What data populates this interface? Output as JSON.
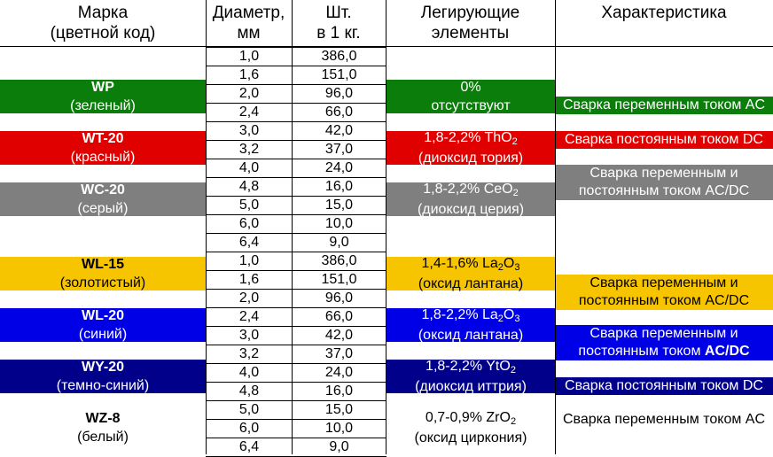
{
  "header": {
    "brand_line1": "Марка",
    "brand_line2": "(цветной код)",
    "diam_line1": "Диаметр,",
    "diam_line2": "мм",
    "pcs_line1": "Шт.",
    "pcs_line2": "в 1 кг.",
    "alloy_line1": "Легирующие",
    "alloy_line2": "элементы",
    "char": "Характеристика"
  },
  "colors": {
    "green": "#0a7d0a",
    "red": "#e00000",
    "gray": "#7f7f7f",
    "gold": "#f7c400",
    "blue": "#0000e6",
    "navy": "#00008b"
  },
  "rows": [
    {
      "d": "1,0",
      "n": "386,0"
    },
    {
      "d": "1,6",
      "n": "151,0"
    },
    {
      "d": "2,0",
      "n": "96,0"
    },
    {
      "d": "2,4",
      "n": "66,0"
    },
    {
      "d": "3,0",
      "n": "42,0"
    },
    {
      "d": "3,2",
      "n": "37,0"
    },
    {
      "d": "4,0",
      "n": "24,0"
    },
    {
      "d": "4,8",
      "n": "16,0"
    },
    {
      "d": "5,0",
      "n": "15,0"
    },
    {
      "d": "6,0",
      "n": "10,0"
    },
    {
      "d": "6,4",
      "n": "9,0"
    },
    {
      "d": "1,0",
      "n": "386,0"
    },
    {
      "d": "1,6",
      "n": "151,0"
    },
    {
      "d": "2,0",
      "n": "96,0"
    },
    {
      "d": "2,4",
      "n": "66,0"
    },
    {
      "d": "3,0",
      "n": "42,0"
    },
    {
      "d": "3,2",
      "n": "37,0"
    },
    {
      "d": "4,0",
      "n": "24,0"
    },
    {
      "d": "4,8",
      "n": "16,0"
    },
    {
      "d": "5,0",
      "n": "15,0"
    },
    {
      "d": "6,0",
      "n": "10,0"
    },
    {
      "d": "6,4",
      "n": "9,0"
    }
  ],
  "brands": [
    {
      "name": "WP",
      "color_name": "(зеленый)"
    },
    {
      "name": "WT-20",
      "color_name": "(красный)"
    },
    {
      "name": "WC-20",
      "color_name": "(серый)"
    },
    {
      "name": "WL-15",
      "color_name": "(золотистый)"
    },
    {
      "name": "WL-20",
      "color_name": "(синий)"
    },
    {
      "name": "WY-20",
      "color_name": "(темно-синий)"
    },
    {
      "name": "WZ-8",
      "color_name": "(белый)"
    }
  ],
  "alloys": [
    {
      "line1": "0%",
      "line2": "отсутствуют"
    },
    {
      "line1_pre": "1,8-2,2% ThO",
      "sub": "2",
      "line2": "(диоксид тория)"
    },
    {
      "line1_pre": "1,8-2,2% CeO",
      "sub": "2",
      "line2": "(диоксид церия)"
    },
    {
      "line1_pre": "1,4-1,6% La",
      "sub": "2",
      "mid": "O",
      "sub2": "3",
      "line2": "(оксид лантана)"
    },
    {
      "line1_pre": "1,8-2,2% La",
      "sub": "2",
      "mid": "O",
      "sub2": "3",
      "line2": "(оксид лантана)"
    },
    {
      "line1_pre": "1,8-2,2% YtO",
      "sub": "2",
      "line2": "(диоксид иттрия)"
    },
    {
      "line1_pre": "0,7-0,9% ZrO",
      "sub": "2",
      "line2": "(оксид циркония)"
    }
  ],
  "characteristics": [
    "Сварка переменным током AC",
    "Сварка постоянным током DC",
    "Сварка переменным и",
    "постоянным током AC/DC",
    "Сварка переменным и",
    "постоянным током AC/DC",
    "Сварка переменным и",
    "постоянным током ",
    "AC/DC",
    "Сварка постоянным током DC",
    "Сварка переменным током AC"
  ]
}
